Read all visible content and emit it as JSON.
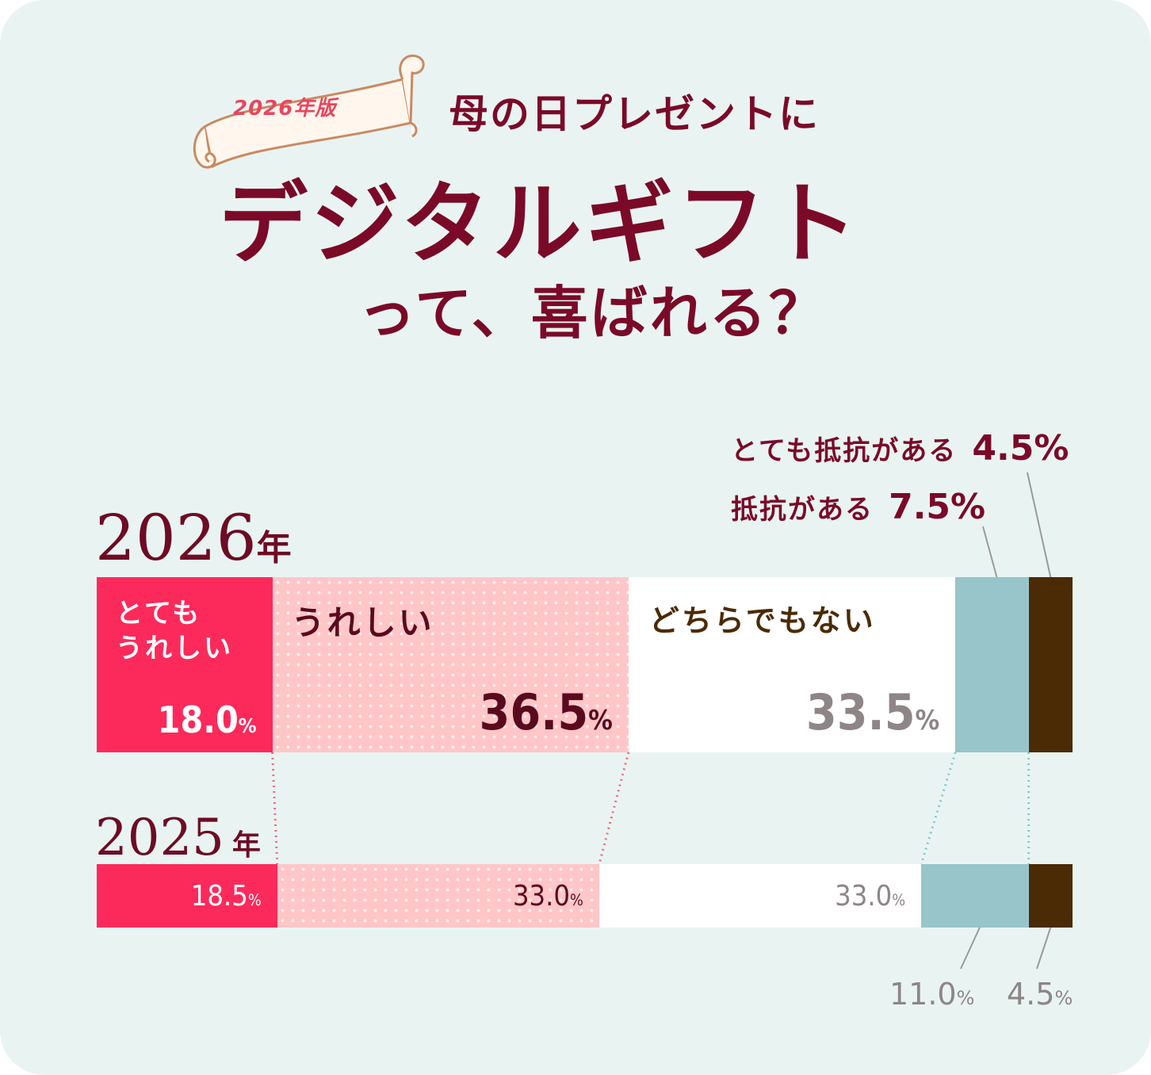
{
  "header": {
    "badge": "2026年版",
    "title_line1": "母の日プレゼントに",
    "title_line2": "デジタルギフト",
    "title_line3": "って、喜ばれる？"
  },
  "colors": {
    "background": "#e9f4f2",
    "very_happy": "#fb2a5b",
    "happy": "#ffc6c8",
    "neutral": "#ffffff",
    "resistant": "#98c5c9",
    "very_resistant": "#4b2a06",
    "title": "#7a0a28"
  },
  "chart_data": {
    "type": "bar",
    "orientation": "horizontal",
    "stacked": true,
    "unit": "%",
    "categories": [
      "2026年",
      "2025年"
    ],
    "category_labels": [
      {
        "num": "2026",
        "suffix": "年"
      },
      {
        "num": "2025",
        "suffix": "年"
      }
    ],
    "series": [
      {
        "name": "とても\nうれしい",
        "values": [
          18.0,
          18.5
        ],
        "labels": [
          "18.0",
          "18.5"
        ]
      },
      {
        "name": "うれしい",
        "values": [
          36.5,
          33.0
        ],
        "labels": [
          "36.5",
          "33.0"
        ]
      },
      {
        "name": "どちらでもない",
        "values": [
          33.5,
          33.0
        ],
        "labels": [
          "33.5",
          "33.0"
        ]
      },
      {
        "name": "抵抗がある",
        "values": [
          7.5,
          11.0
        ],
        "labels": [
          "7.5",
          "11.0"
        ]
      },
      {
        "name": "とても抵抗がある",
        "values": [
          4.5,
          4.5
        ],
        "labels": [
          "4.5",
          "4.5"
        ]
      }
    ]
  }
}
